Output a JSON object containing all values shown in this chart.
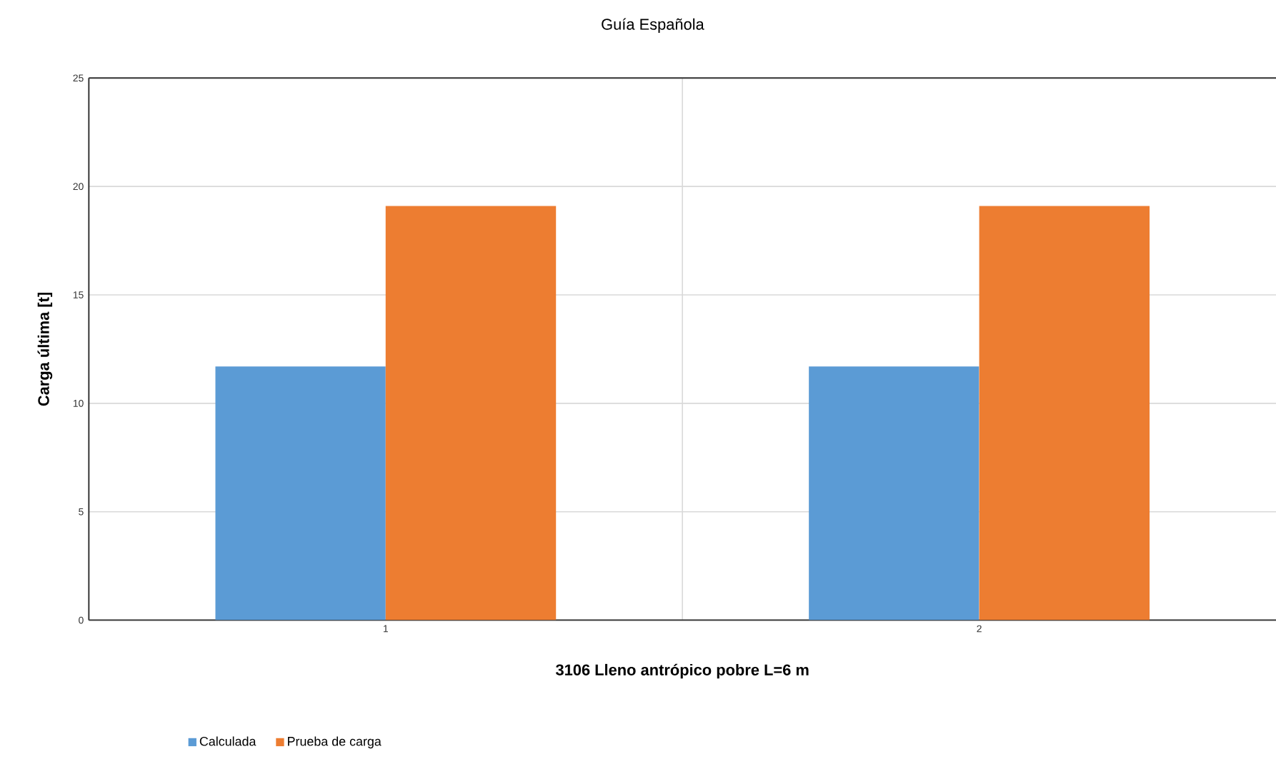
{
  "chart_data": {
    "type": "bar",
    "title": "Guía Española",
    "xlabel": "3106 Lleno antrópico pobre      L=6 m",
    "ylabel": "Carga última [t]",
    "categories": [
      "1",
      "2"
    ],
    "series": [
      {
        "name": "Calculada",
        "color": "#5b9bd5",
        "values": [
          11.7,
          11.7
        ]
      },
      {
        "name": "Prueba de carga",
        "color": "#ed7d31",
        "values": [
          19.1,
          19.1
        ]
      }
    ],
    "ylim": [
      0,
      25
    ],
    "yticks": [
      0,
      5,
      10,
      15,
      20,
      25
    ],
    "grid": true,
    "legend": "bottom left"
  }
}
